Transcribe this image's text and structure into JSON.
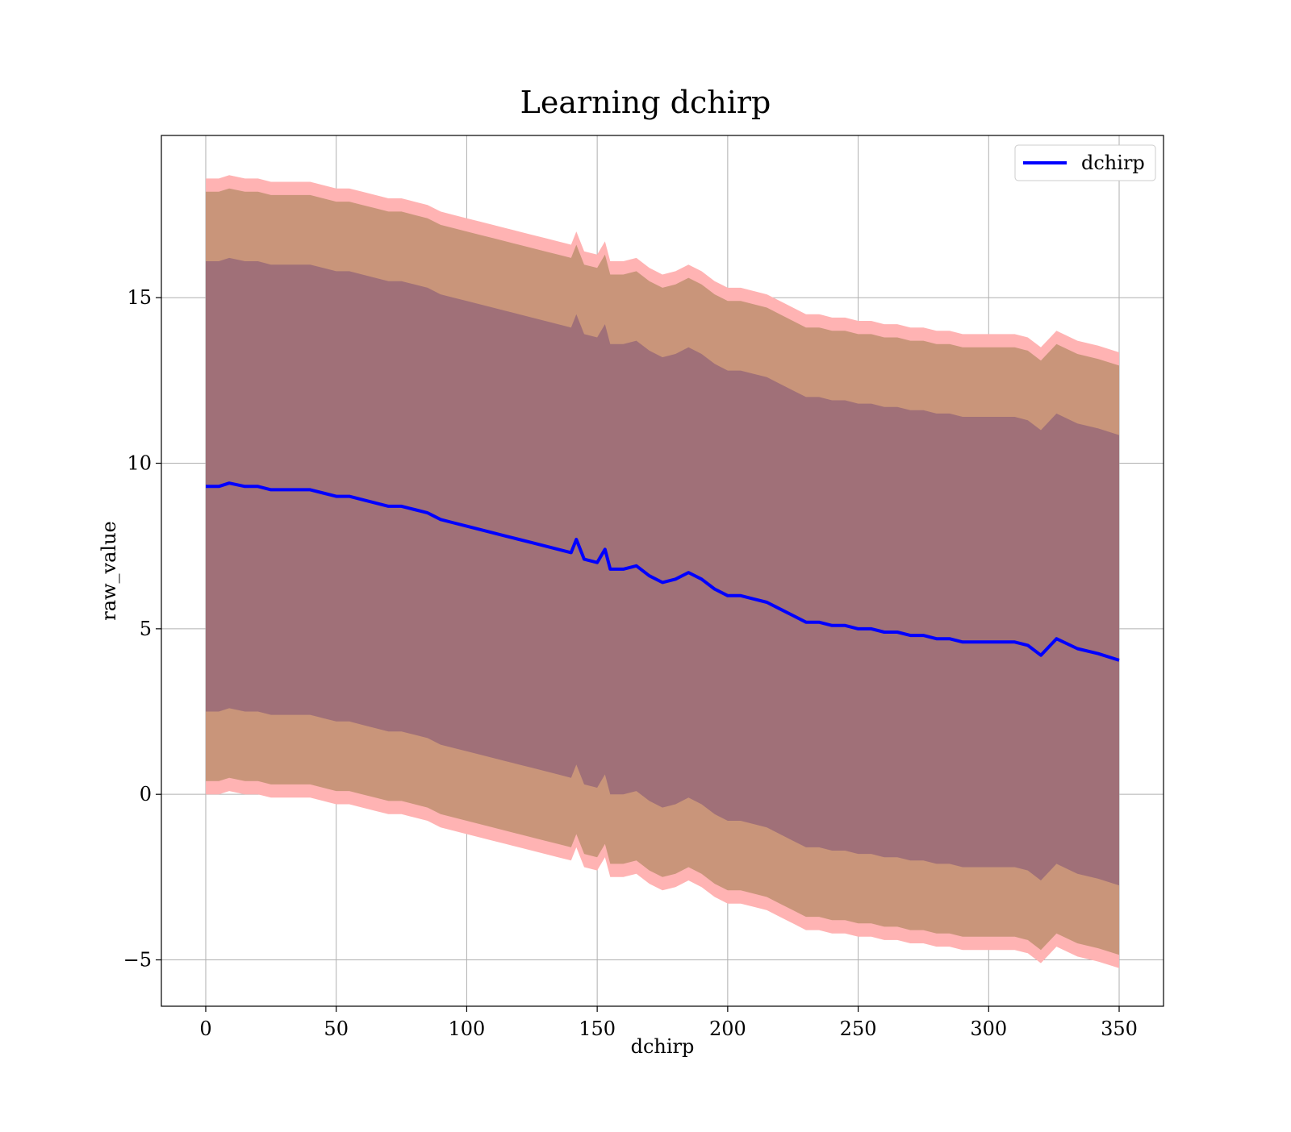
{
  "chart_data": {
    "type": "line",
    "title": "Learning dchirp",
    "xlabel": "dchirp",
    "ylabel": "raw_value",
    "xlim": [
      -17,
      367
    ],
    "ylim": [
      -6.4,
      19.9
    ],
    "x_ticks": [
      0,
      50,
      100,
      150,
      200,
      250,
      300,
      350
    ],
    "y_ticks": [
      -5,
      0,
      5,
      10,
      15
    ],
    "x_tick_labels": [
      "0",
      "50",
      "100",
      "150",
      "200",
      "250",
      "300",
      "350"
    ],
    "y_tick_labels": [
      "−5",
      "0",
      "5",
      "10",
      "15"
    ],
    "grid": true,
    "legend": {
      "placement": "upper right",
      "entries": [
        "dchirp"
      ]
    },
    "colors": {
      "line": "#0000ff",
      "band_outer": "#ffb3b3",
      "band_middle": "#c9957a",
      "band_inner": "#a07078",
      "grid": "#b0b0b0"
    },
    "series": [
      {
        "name": "dchirp",
        "x": [
          0,
          5,
          9,
          15,
          20,
          25,
          30,
          35,
          40,
          45,
          50,
          55,
          60,
          65,
          70,
          75,
          80,
          85,
          90,
          95,
          100,
          105,
          110,
          115,
          120,
          125,
          130,
          135,
          140,
          142,
          145,
          150,
          153,
          155,
          160,
          165,
          170,
          175,
          180,
          185,
          190,
          195,
          200,
          205,
          210,
          215,
          220,
          225,
          230,
          235,
          240,
          245,
          250,
          255,
          260,
          265,
          270,
          275,
          280,
          285,
          290,
          295,
          300,
          305,
          310,
          315,
          320,
          326,
          334,
          342,
          350
        ],
        "values": [
          9.3,
          9.3,
          9.4,
          9.3,
          9.3,
          9.2,
          9.2,
          9.2,
          9.2,
          9.1,
          9.0,
          9.0,
          8.9,
          8.8,
          8.7,
          8.7,
          8.6,
          8.5,
          8.3,
          8.2,
          8.1,
          8.0,
          7.9,
          7.8,
          7.7,
          7.6,
          7.5,
          7.4,
          7.3,
          7.7,
          7.1,
          7.0,
          7.4,
          6.8,
          6.8,
          6.9,
          6.6,
          6.4,
          6.5,
          6.7,
          6.5,
          6.2,
          6.0,
          6.0,
          5.9,
          5.8,
          5.6,
          5.4,
          5.2,
          5.2,
          5.1,
          5.1,
          5.0,
          5.0,
          4.9,
          4.9,
          4.8,
          4.8,
          4.7,
          4.7,
          4.6,
          4.6,
          4.6,
          4.6,
          4.6,
          4.5,
          4.2,
          4.7,
          4.4,
          4.25,
          4.05
        ]
      }
    ],
    "bands": [
      {
        "level": "outer",
        "lower_offset": -9.3,
        "upper_offset": 9.3
      },
      {
        "level": "middle",
        "lower_offset": -8.9,
        "upper_offset": 8.9
      },
      {
        "level": "inner",
        "lower_offset": -6.8,
        "upper_offset": 6.8
      }
    ]
  }
}
